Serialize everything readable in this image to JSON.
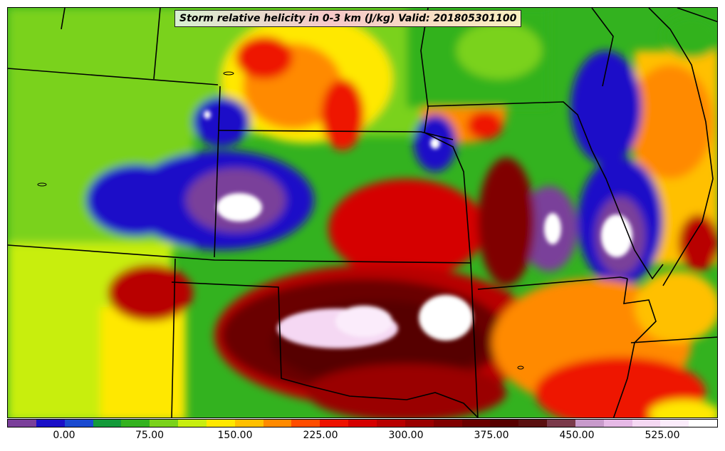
{
  "title": "Storm relative helicity in 0-3 km (J/kg) Valid: 201805301100",
  "colorbar": {
    "colors": [
      "#7a3f9a",
      "#1a10c8",
      "#1a4ad0",
      "#139a3a",
      "#33b21f",
      "#7ad21a",
      "#c8ee10",
      "#ffe800",
      "#ffc000",
      "#ff8a00",
      "#ff4d00",
      "#ee1200",
      "#d50000",
      "#b80000",
      "#9a0000",
      "#800000",
      "#6a0000",
      "#560000",
      "#5a1010",
      "#7a3a4a",
      "#c89acb",
      "#e6b9e6",
      "#f5d8f3",
      "#fbecfb",
      "#ffffff"
    ],
    "tick_labels": [
      "0.00",
      "75.00",
      "150.00",
      "225.00",
      "300.00",
      "375.00",
      "450.00",
      "525.00"
    ]
  },
  "map_regions": [
    {
      "name": "white-plains-nw",
      "color": "#ffffff"
    },
    {
      "name": "white-oklahoma",
      "color": "#ffffff"
    },
    {
      "name": "pink-texas-panhandle",
      "color": "#f5d8f3"
    }
  ]
}
